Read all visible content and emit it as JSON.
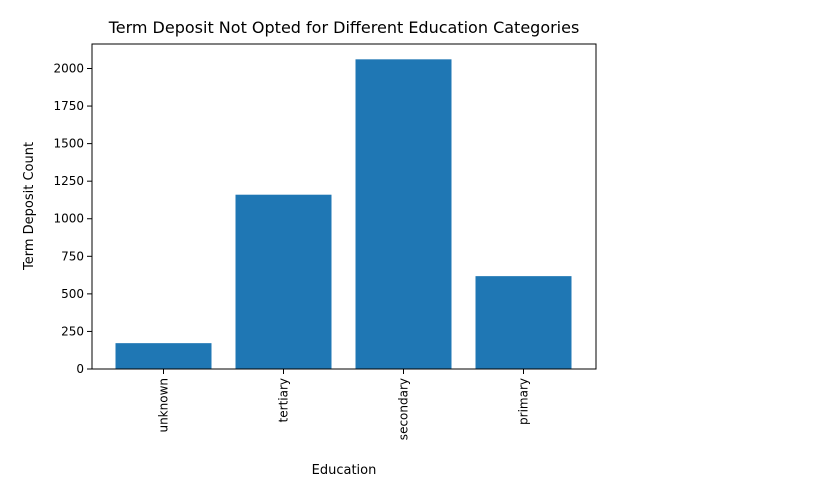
{
  "chart_data": {
    "type": "bar",
    "title": "Term Deposit Not Opted for Different Education Categories",
    "xlabel": "Education",
    "ylabel": "Term Deposit Count",
    "categories": [
      "unknown",
      "tertiary",
      "secondary",
      "primary"
    ],
    "values": [
      172,
      1160,
      2061,
      618
    ],
    "ylim": [
      0,
      2163
    ],
    "yticks": [
      0,
      250,
      500,
      750,
      1000,
      1250,
      1500,
      1750,
      2000
    ],
    "grid": false,
    "bar_color": "#1f77b4"
  }
}
